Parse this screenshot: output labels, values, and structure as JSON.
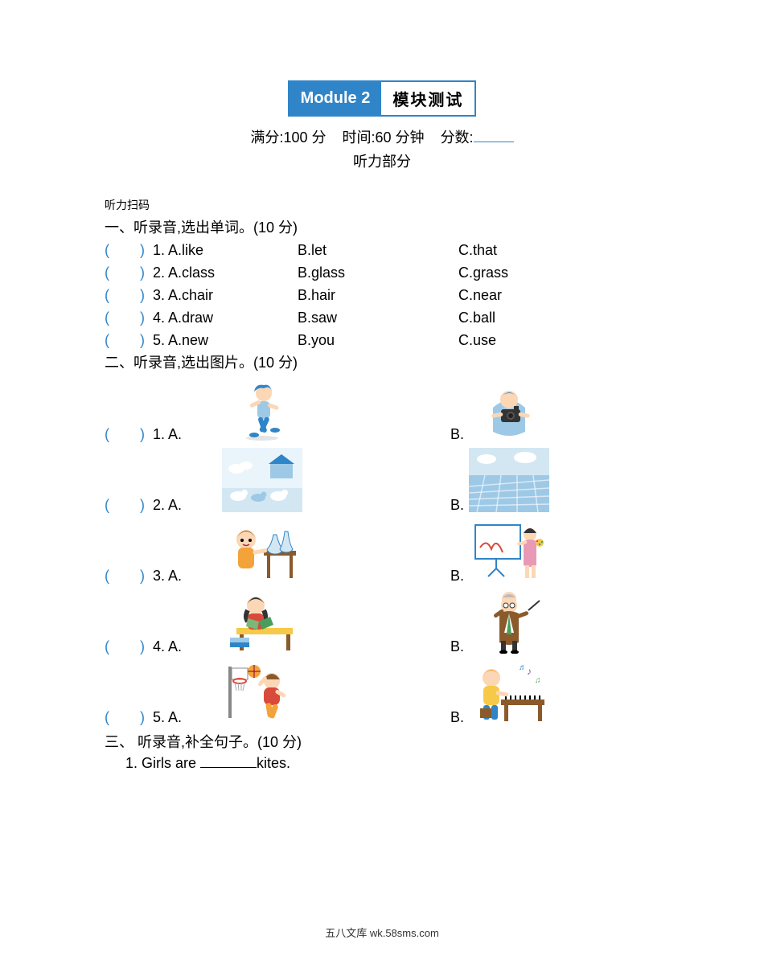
{
  "banner": {
    "left": "Module 2",
    "right": "模块测试"
  },
  "info": {
    "full_label": "满分:",
    "full_value": "100 分",
    "time_label": "时间:",
    "time_value": "60 分钟",
    "score_label": "分数:"
  },
  "section_listen": "听力部分",
  "scan_label": "听力扫码",
  "q1": {
    "title": "一、听录音,选出单词。(10 分)",
    "rows": [
      {
        "n": "1.",
        "a": "A.like",
        "b": "B.let",
        "c": "C.that"
      },
      {
        "n": "2.",
        "a": "A.class",
        "b": "B.glass",
        "c": "C.grass"
      },
      {
        "n": "3.",
        "a": "A.chair",
        "b": "B.hair",
        "c": "C.near"
      },
      {
        "n": "4.",
        "a": "A.draw",
        "b": "B.saw",
        "c": "C.ball"
      },
      {
        "n": "5.",
        "a": "A.new",
        "b": "B.you",
        "c": "C.use"
      }
    ]
  },
  "q2": {
    "title": "二、听录音,选出图片。(10 分)",
    "rows": [
      {
        "n": "1.",
        "a_img": "running-boy",
        "b_img": "photographer"
      },
      {
        "n": "2.",
        "a_img": "farm-animals",
        "b_img": "field"
      },
      {
        "n": "3.",
        "a_img": "science-boy",
        "b_img": "teacher-board"
      },
      {
        "n": "4.",
        "a_img": "girl-reading",
        "b_img": "conductor"
      },
      {
        "n": "5.",
        "a_img": "basketball-boy",
        "b_img": "piano-boy"
      }
    ]
  },
  "q3": {
    "title": "三、 听录音,补全句子。(10 分)",
    "s1_pre": "1. Girls are ",
    "s1_post": "kites."
  },
  "footer": "五八文库 wk.58sms.com",
  "paren_open": "(",
  "paren_close": ")",
  "label_a": "A.",
  "label_b": "B.",
  "colors": {
    "accent": "#2f85c8",
    "light_blue": "#9ec9e6",
    "pale_blue": "#d3e7f3",
    "skin": "#fcd7b5",
    "orange": "#f4a23a",
    "red": "#d94a3a",
    "brown": "#8b5a2b",
    "green": "#4a9e5c",
    "yellow": "#f6c948",
    "dark": "#333333",
    "purple": "#7a5aa0",
    "pink": "#e89ab5"
  }
}
